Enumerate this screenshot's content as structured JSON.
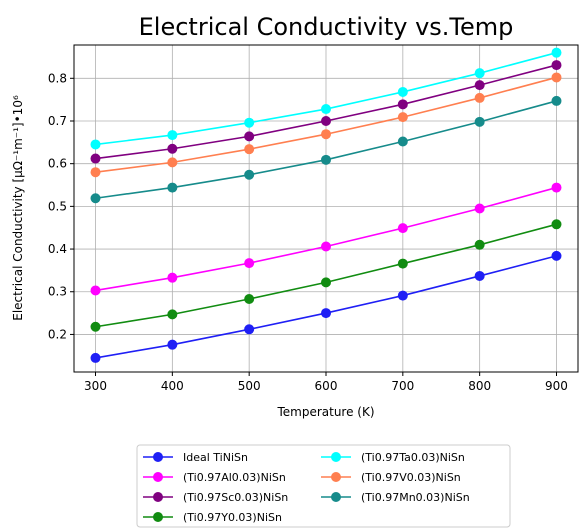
{
  "chart_data": {
    "type": "line",
    "title": "Electrical Conductivity vs.Temp",
    "xlabel": "Temperature (K)",
    "ylabel": "Electrical Conductivity [μΩ⁻¹m⁻¹]•10⁶",
    "x": [
      300,
      400,
      500,
      600,
      700,
      800,
      900
    ],
    "xticks": [
      "300",
      "400",
      "500",
      "600",
      "700",
      "800",
      "900"
    ],
    "yticks": [
      "0.2",
      "0.3",
      "0.4",
      "0.5",
      "0.6",
      "0.7",
      "0.8"
    ],
    "xlim": [
      272,
      928
    ],
    "ylim": [
      0.112,
      0.878
    ],
    "grid": true,
    "legend_position": "below plot",
    "series": [
      {
        "name": "Ideal TiNiSn",
        "color": "#1f1ff5",
        "values": [
          0.145,
          0.176,
          0.212,
          0.25,
          0.291,
          0.337,
          0.384
        ]
      },
      {
        "name": "(Ti0.97Al0.03)NiSn",
        "color": "#ff00ff",
        "values": [
          0.303,
          0.333,
          0.367,
          0.406,
          0.449,
          0.495,
          0.544
        ]
      },
      {
        "name": "(Ti0.97Sc0.03)NiSn",
        "color": "#800080",
        "values": [
          0.612,
          0.635,
          0.664,
          0.7,
          0.739,
          0.784,
          0.831
        ]
      },
      {
        "name": "(Ti0.97Y0.03)NiSn",
        "color": "#118c11",
        "values": [
          0.218,
          0.247,
          0.283,
          0.322,
          0.366,
          0.41,
          0.458
        ]
      },
      {
        "name": "(Ti0.97Ta0.03)NiSn",
        "color": "#00ffff",
        "values": [
          0.645,
          0.667,
          0.696,
          0.728,
          0.768,
          0.812,
          0.86
        ]
      },
      {
        "name": "(Ti0.97V0.03)NiSn",
        "color": "#ff7f50",
        "values": [
          0.58,
          0.603,
          0.634,
          0.669,
          0.709,
          0.754,
          0.802
        ]
      },
      {
        "name": "(Ti0.97Mn0.03)NiSn",
        "color": "#168b8b",
        "values": [
          0.519,
          0.544,
          0.574,
          0.609,
          0.652,
          0.698,
          0.747
        ]
      }
    ]
  }
}
